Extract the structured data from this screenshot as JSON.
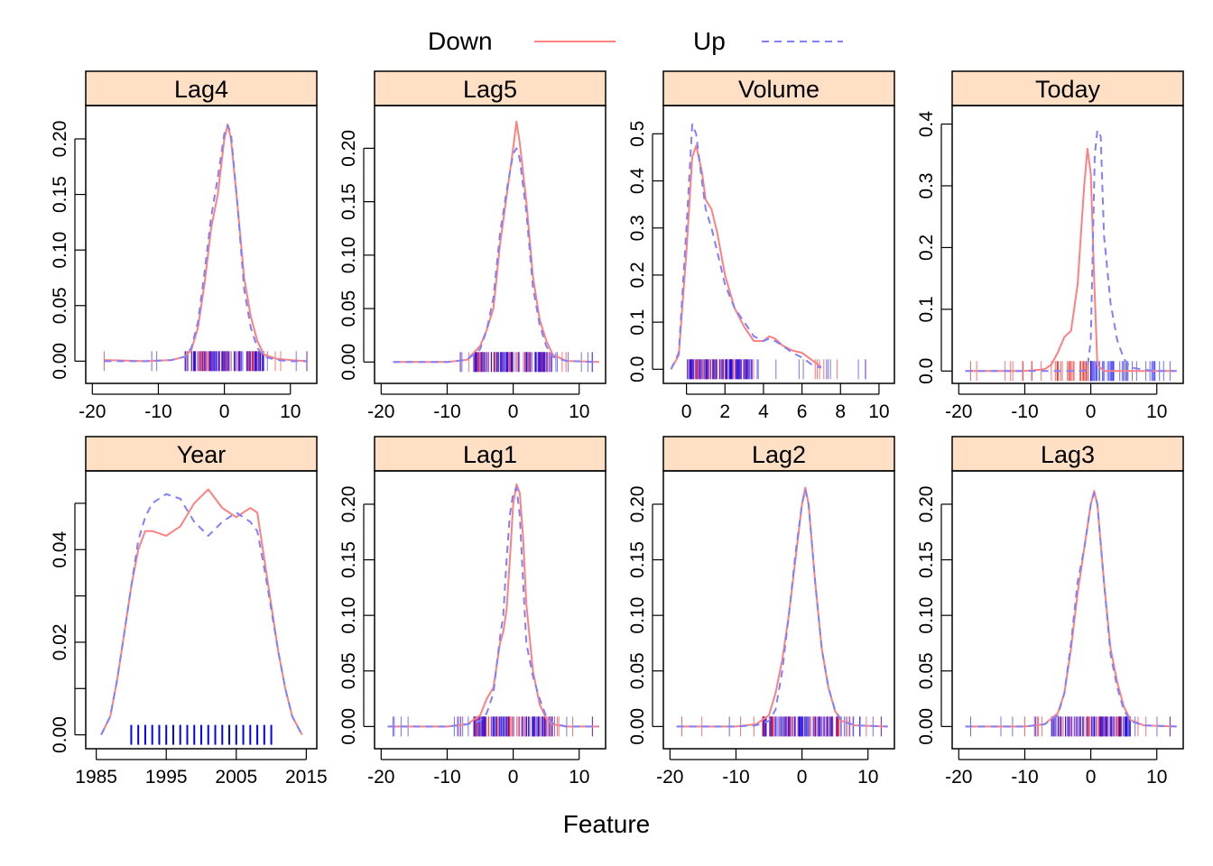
{
  "figure": {
    "xlabel": "Feature",
    "legend": {
      "placement": "top",
      "entries": [
        {
          "label": "Down",
          "color": "#ff8080",
          "style": "solid"
        },
        {
          "label": "Up",
          "color": "#8080ff",
          "style": "dashed"
        }
      ]
    },
    "strip_color": "#ffe0c4",
    "rug_colors": {
      "Down": "#ff0000",
      "Up": "#0000ff"
    }
  },
  "chart_data": [
    {
      "type": "area",
      "title": "Lag4",
      "xlim": [
        -21,
        14
      ],
      "ylim": [
        -0.02,
        0.23
      ],
      "xticks": [
        -20,
        -10,
        0,
        10
      ],
      "xtick_labels": [
        "-20",
        "-10",
        "0",
        "10"
      ],
      "yticks": [
        0.0,
        0.05,
        0.1,
        0.15,
        0.2
      ],
      "ytick_labels": [
        "0.00",
        "0.05",
        "0.10",
        "0.15",
        "0.20"
      ],
      "series": [
        {
          "name": "Down",
          "x": [
            -18.2,
            -12,
            -8,
            -6,
            -5,
            -4,
            -3,
            -2,
            -1,
            0,
            0.5,
            1,
            2,
            3,
            4,
            5,
            6,
            8,
            10,
            12.5
          ],
          "y": [
            0.001,
            0.0,
            0.001,
            0.004,
            0.01,
            0.03,
            0.07,
            0.12,
            0.15,
            0.2,
            0.213,
            0.2,
            0.14,
            0.075,
            0.04,
            0.018,
            0.006,
            0.002,
            0.001,
            0.0
          ]
        },
        {
          "name": "Up",
          "x": [
            -18.2,
            -12,
            -8,
            -6,
            -5,
            -4,
            -3,
            -2,
            -1,
            0,
            0.5,
            1,
            2,
            3,
            4,
            5,
            6,
            8,
            10,
            12.5
          ],
          "y": [
            0.0,
            0.0,
            0.001,
            0.004,
            0.012,
            0.035,
            0.08,
            0.13,
            0.165,
            0.205,
            0.212,
            0.205,
            0.14,
            0.065,
            0.03,
            0.012,
            0.004,
            0.001,
            0.0,
            0.0
          ]
        }
      ],
      "rug": {
        "Down_range": [
          -18.2,
          12.5
        ],
        "Up_range": [
          -11,
          12.5
        ],
        "core": [
          -6,
          6
        ]
      }
    },
    {
      "type": "area",
      "title": "Lag5",
      "xlim": [
        -21,
        14
      ],
      "ylim": [
        -0.02,
        0.24
      ],
      "xticks": [
        -20,
        -10,
        0,
        10
      ],
      "xtick_labels": [
        "-20",
        "-10",
        "0",
        "10"
      ],
      "yticks": [
        0.0,
        0.05,
        0.1,
        0.15,
        0.2
      ],
      "ytick_labels": [
        "0.00",
        "0.05",
        "0.10",
        "0.15",
        "0.20"
      ],
      "series": [
        {
          "name": "Down",
          "x": [
            -18.2,
            -10,
            -7,
            -5,
            -4,
            -3,
            -2,
            -1,
            0,
            0.5,
            1,
            2,
            3,
            4,
            5,
            6,
            8,
            13
          ],
          "y": [
            0.0,
            0.0,
            0.002,
            0.015,
            0.03,
            0.05,
            0.11,
            0.155,
            0.2,
            0.225,
            0.205,
            0.15,
            0.08,
            0.04,
            0.02,
            0.007,
            0.001,
            0.0
          ]
        },
        {
          "name": "Up",
          "x": [
            -18.2,
            -10,
            -7,
            -5,
            -4,
            -3,
            -2,
            -1,
            0,
            0.5,
            1,
            2,
            3,
            4,
            5,
            6,
            8,
            13
          ],
          "y": [
            0.0,
            0.0,
            0.002,
            0.012,
            0.03,
            0.06,
            0.12,
            0.16,
            0.195,
            0.2,
            0.19,
            0.14,
            0.07,
            0.035,
            0.015,
            0.005,
            0.001,
            0.0
          ]
        }
      ],
      "rug": {
        "Down_range": [
          -8,
          8
        ],
        "Up_range": [
          -8,
          12
        ],
        "core": [
          -6,
          6
        ]
      }
    },
    {
      "type": "area",
      "title": "Volume",
      "xlim": [
        -1.2,
        10.8
      ],
      "ylim": [
        -0.03,
        0.56
      ],
      "xticks": [
        0,
        2,
        4,
        6,
        8,
        10
      ],
      "xtick_labels": [
        "0",
        "2",
        "4",
        "6",
        "8",
        "10"
      ],
      "yticks": [
        0.0,
        0.1,
        0.2,
        0.3,
        0.4,
        0.5
      ],
      "ytick_labels": [
        "0.0",
        "0.1",
        "0.2",
        "0.3",
        "0.4",
        "0.5"
      ],
      "series": [
        {
          "name": "Down",
          "x": [
            -0.8,
            -0.4,
            0,
            0.3,
            0.5,
            0.8,
            1,
            1.3,
            1.6,
            2,
            2.5,
            3,
            3.5,
            4,
            4.3,
            4.6,
            5,
            5.5,
            6,
            6.5,
            7
          ],
          "y": [
            0.0,
            0.03,
            0.25,
            0.45,
            0.475,
            0.42,
            0.36,
            0.34,
            0.29,
            0.2,
            0.13,
            0.09,
            0.06,
            0.06,
            0.07,
            0.065,
            0.05,
            0.04,
            0.035,
            0.02,
            0.005
          ]
        },
        {
          "name": "Up",
          "x": [
            -0.8,
            -0.4,
            0,
            0.3,
            0.5,
            0.8,
            1,
            1.3,
            1.6,
            2,
            2.5,
            3,
            3.5,
            4,
            4.3,
            4.6,
            5,
            5.5,
            6,
            6.5,
            7
          ],
          "y": [
            0.0,
            0.035,
            0.3,
            0.52,
            0.5,
            0.4,
            0.34,
            0.3,
            0.25,
            0.18,
            0.13,
            0.1,
            0.07,
            0.06,
            0.065,
            0.06,
            0.05,
            0.035,
            0.025,
            0.01,
            0.003
          ]
        }
      ],
      "rug": {
        "Down_range": [
          0.05,
          9.3
        ],
        "Up_range": [
          0.05,
          9.3
        ],
        "core": [
          0.1,
          3.5
        ]
      }
    },
    {
      "type": "area",
      "title": "Today",
      "xlim": [
        -21,
        14
      ],
      "ylim": [
        -0.02,
        0.43
      ],
      "xticks": [
        -20,
        -10,
        0,
        10
      ],
      "xtick_labels": [
        "-20",
        "-10",
        "0",
        "10"
      ],
      "yticks": [
        0.0,
        0.1,
        0.2,
        0.3,
        0.4
      ],
      "ytick_labels": [
        "0.0",
        "0.1",
        "0.2",
        "0.3",
        "0.4"
      ],
      "series": [
        {
          "name": "Down",
          "x": [
            -19,
            -10,
            -7,
            -6,
            -5,
            -4,
            -3,
            -2,
            -1.5,
            -1,
            -0.5,
            0,
            0.5,
            1,
            2,
            13
          ],
          "y": [
            0.0,
            0.0,
            0.003,
            0.01,
            0.03,
            0.055,
            0.065,
            0.14,
            0.22,
            0.3,
            0.36,
            0.32,
            0.15,
            0.01,
            0.0,
            0.0
          ]
        },
        {
          "name": "Up",
          "x": [
            -19,
            -10,
            -2,
            -1,
            -0.5,
            0,
            0.3,
            0.6,
            1,
            1.5,
            2,
            3,
            4,
            5,
            6,
            8,
            10,
            13
          ],
          "y": [
            0.0,
            0.0,
            0.0,
            0.0,
            0.005,
            0.05,
            0.2,
            0.35,
            0.39,
            0.38,
            0.22,
            0.11,
            0.05,
            0.02,
            0.006,
            0.002,
            0.0,
            0.0
          ]
        }
      ],
      "rug": {
        "Down_range": [
          -18.2,
          0
        ],
        "Up_range": [
          0,
          12
        ],
        "core": [
          -6,
          6
        ]
      }
    },
    {
      "type": "area",
      "title": "Year",
      "xlim": [
        1983.5,
        2016.5
      ],
      "ylim": [
        -0.003,
        0.057
      ],
      "xticks": [
        1985,
        1995,
        2005,
        2015
      ],
      "xtick_labels": [
        "1985",
        "1995",
        "2005",
        "2015"
      ],
      "yticks": [
        0.0,
        0.01,
        0.02,
        0.03,
        0.04,
        0.05
      ],
      "ytick_labels": [
        "0.00",
        "",
        "0.02",
        "",
        "0.04",
        ""
      ],
      "series": [
        {
          "name": "Down",
          "x": [
            1985.7,
            1987,
            1988,
            1989,
            1990,
            1991,
            1992,
            1993,
            1995,
            1997,
            1999,
            2001,
            2003,
            2005,
            2007,
            2008,
            2009,
            2010,
            2011,
            2012,
            2013,
            2014.4
          ],
          "y": [
            0.0,
            0.004,
            0.012,
            0.022,
            0.032,
            0.04,
            0.044,
            0.044,
            0.043,
            0.045,
            0.05,
            0.053,
            0.049,
            0.047,
            0.049,
            0.048,
            0.038,
            0.028,
            0.018,
            0.01,
            0.004,
            0.0
          ]
        },
        {
          "name": "Up",
          "x": [
            1985.7,
            1987,
            1988,
            1989,
            1990,
            1991,
            1992,
            1993,
            1995,
            1997,
            1999,
            2001,
            2003,
            2005,
            2007,
            2008,
            2009,
            2010,
            2011,
            2012,
            2013,
            2014.4
          ],
          "y": [
            0.0,
            0.004,
            0.012,
            0.022,
            0.032,
            0.042,
            0.047,
            0.05,
            0.052,
            0.051,
            0.046,
            0.043,
            0.046,
            0.048,
            0.046,
            0.044,
            0.036,
            0.027,
            0.018,
            0.01,
            0.004,
            0.0
          ]
        }
      ],
      "rug": {
        "Down_range": [
          1990,
          2010
        ],
        "Up_range": [
          1990,
          2010
        ],
        "core": [
          1990,
          2010
        ]
      }
    },
    {
      "type": "area",
      "title": "Lag1",
      "xlim": [
        -21,
        14
      ],
      "ylim": [
        -0.02,
        0.23
      ],
      "xticks": [
        -20,
        -10,
        0,
        10
      ],
      "xtick_labels": [
        "-20",
        "-10",
        "0",
        "10"
      ],
      "yticks": [
        0.0,
        0.05,
        0.1,
        0.15,
        0.2
      ],
      "ytick_labels": [
        "0.00",
        "0.05",
        "0.10",
        "0.15",
        "0.20"
      ],
      "series": [
        {
          "name": "Down",
          "x": [
            -19,
            -10,
            -7,
            -5,
            -4,
            -3,
            -2,
            -1.5,
            -1,
            -0.5,
            0,
            0.5,
            1,
            1.5,
            2,
            3,
            4,
            5,
            6,
            8,
            13
          ],
          "y": [
            0.0,
            0.0,
            0.002,
            0.01,
            0.025,
            0.035,
            0.075,
            0.085,
            0.105,
            0.15,
            0.2,
            0.218,
            0.21,
            0.17,
            0.11,
            0.05,
            0.02,
            0.007,
            0.002,
            0.0,
            0.0
          ]
        },
        {
          "name": "Up",
          "x": [
            -19,
            -10,
            -7,
            -5,
            -4,
            -3,
            -2,
            -1.5,
            -1,
            -0.5,
            0,
            0.5,
            1,
            1.5,
            2,
            3,
            4,
            5,
            6,
            8,
            13
          ],
          "y": [
            0.0,
            0.0,
            0.002,
            0.005,
            0.012,
            0.03,
            0.08,
            0.1,
            0.15,
            0.19,
            0.21,
            0.215,
            0.19,
            0.13,
            0.075,
            0.045,
            0.025,
            0.009,
            0.003,
            0.0,
            0.0
          ]
        }
      ],
      "rug": {
        "Down_range": [
          -8,
          12
        ],
        "Up_range": [
          -18.2,
          12
        ],
        "core": [
          -6,
          6
        ]
      }
    },
    {
      "type": "area",
      "title": "Lag2",
      "xlim": [
        -21,
        14
      ],
      "ylim": [
        -0.02,
        0.23
      ],
      "xticks": [
        -20,
        -10,
        0,
        10
      ],
      "xtick_labels": [
        "-20",
        "-10",
        "0",
        "10"
      ],
      "yticks": [
        0.0,
        0.05,
        0.1,
        0.15,
        0.2
      ],
      "ytick_labels": [
        "0.00",
        "0.05",
        "0.10",
        "0.15",
        "0.20"
      ],
      "series": [
        {
          "name": "Down",
          "x": [
            -19,
            -10,
            -7,
            -5,
            -4,
            -3,
            -2,
            -1,
            0,
            0.5,
            1,
            2,
            3,
            4,
            5,
            6,
            8,
            13
          ],
          "y": [
            0.0,
            0.0,
            0.002,
            0.01,
            0.03,
            0.06,
            0.1,
            0.15,
            0.2,
            0.215,
            0.2,
            0.13,
            0.07,
            0.035,
            0.014,
            0.005,
            0.001,
            0.0
          ]
        },
        {
          "name": "Up",
          "x": [
            -19,
            -10,
            -7,
            -5,
            -4,
            -3,
            -2,
            -1,
            0,
            0.5,
            1,
            2,
            3,
            4,
            5,
            6,
            8,
            13
          ],
          "y": [
            0.0,
            0.0,
            0.001,
            0.005,
            0.015,
            0.05,
            0.1,
            0.155,
            0.2,
            0.213,
            0.2,
            0.13,
            0.07,
            0.035,
            0.015,
            0.005,
            0.001,
            0.0
          ]
        }
      ],
      "rug": {
        "Down_range": [
          -18.2,
          12
        ],
        "Up_range": [
          -11,
          12
        ],
        "core": [
          -6,
          6
        ]
      }
    },
    {
      "type": "area",
      "title": "Lag3",
      "xlim": [
        -21,
        14
      ],
      "ylim": [
        -0.02,
        0.23
      ],
      "xticks": [
        -20,
        -10,
        0,
        10
      ],
      "xtick_labels": [
        "-20",
        "-10",
        "0",
        "10"
      ],
      "yticks": [
        0.0,
        0.05,
        0.1,
        0.15,
        0.2
      ],
      "ytick_labels": [
        "0.00",
        "0.05",
        "0.10",
        "0.15",
        "0.20"
      ],
      "series": [
        {
          "name": "Down",
          "x": [
            -19,
            -10,
            -7,
            -5,
            -4,
            -3,
            -2,
            -1,
            0,
            0.5,
            1,
            2,
            3,
            4,
            5,
            6,
            8,
            13
          ],
          "y": [
            0.0,
            0.0,
            0.002,
            0.012,
            0.03,
            0.07,
            0.12,
            0.16,
            0.2,
            0.212,
            0.2,
            0.13,
            0.07,
            0.04,
            0.018,
            0.006,
            0.001,
            0.0
          ]
        },
        {
          "name": "Up",
          "x": [
            -19,
            -10,
            -7,
            -5,
            -4,
            -3,
            -2,
            -1,
            0,
            0.5,
            1,
            2,
            3,
            4,
            5,
            6,
            8,
            13
          ],
          "y": [
            0.0,
            0.0,
            0.002,
            0.01,
            0.03,
            0.075,
            0.13,
            0.16,
            0.2,
            0.21,
            0.2,
            0.13,
            0.065,
            0.035,
            0.015,
            0.005,
            0.001,
            0.0
          ]
        }
      ],
      "rug": {
        "Down_range": [
          -10,
          12
        ],
        "Up_range": [
          -18.2,
          12
        ],
        "core": [
          -6,
          6
        ]
      }
    }
  ]
}
